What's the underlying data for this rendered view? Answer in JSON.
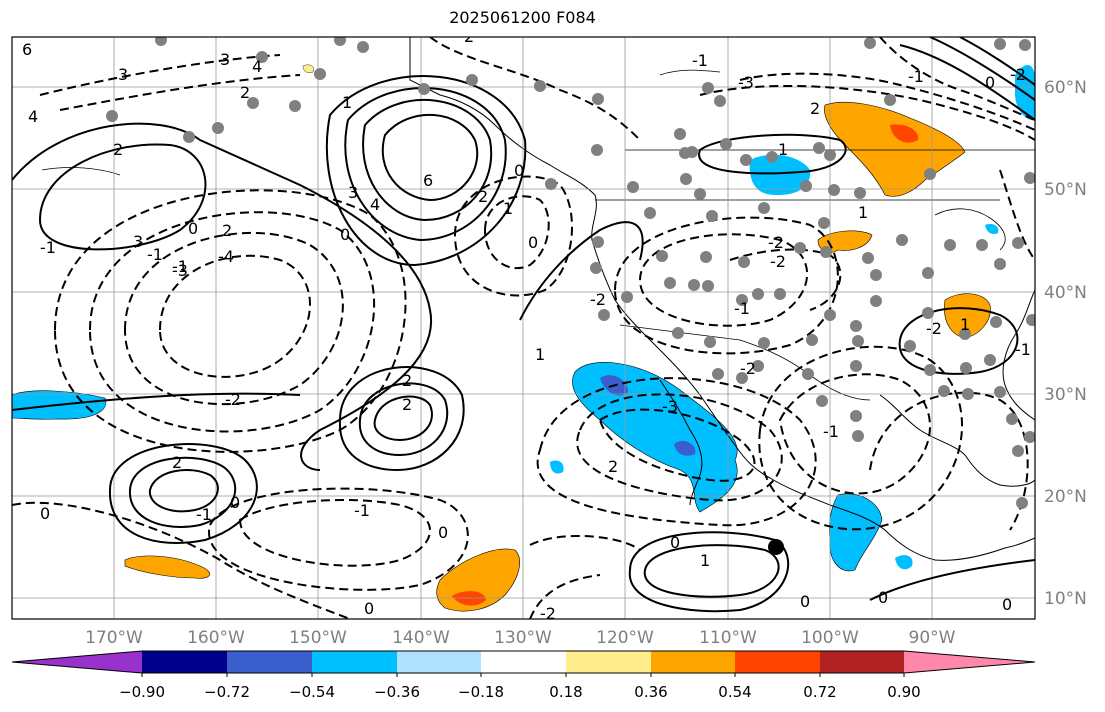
{
  "title": "2025061200 F084",
  "map": {
    "lon_labels": [
      "170°W",
      "160°W",
      "150°W",
      "140°W",
      "130°W",
      "120°W",
      "110°W",
      "100°W",
      "90°W"
    ],
    "lat_labels": [
      "60°N",
      "50°N",
      "40°N",
      "30°N",
      "20°N",
      "10°N"
    ],
    "contour_labels": [
      "6",
      "3",
      "4",
      "3",
      "4",
      "2",
      "1",
      "2",
      "3",
      "-1",
      "0",
      "-1",
      "2",
      "0",
      "-1",
      "-2",
      "-3",
      "-4",
      "6",
      "4",
      "3",
      "0",
      "1",
      "0",
      "2",
      "2",
      "2",
      "-2",
      "2",
      "-1",
      "0",
      "0",
      "-1",
      "0",
      "1",
      "0",
      "-2",
      "1",
      "2",
      "-3",
      "-2",
      "-1",
      "-2",
      "-3",
      "2",
      "-2",
      "1",
      "1",
      "0",
      "-1",
      "0",
      "0",
      "-1",
      "0",
      "-2",
      "1",
      "-2",
      "0",
      "-1",
      "2",
      "-1"
    ]
  },
  "colorbar": {
    "tick_labels": [
      "−0.90",
      "−0.72",
      "−0.54",
      "−0.36",
      "−0.18",
      "0.18",
      "0.36",
      "0.54",
      "0.72",
      "0.90"
    ],
    "colors": [
      "#9932cc",
      "#00008b",
      "#3a5fcd",
      "#00bfff",
      "#b0e2ff",
      "#ffffff",
      "#ffec8b",
      "#ffa500",
      "#ff4500",
      "#b22222",
      "#ff88aa"
    ]
  }
}
